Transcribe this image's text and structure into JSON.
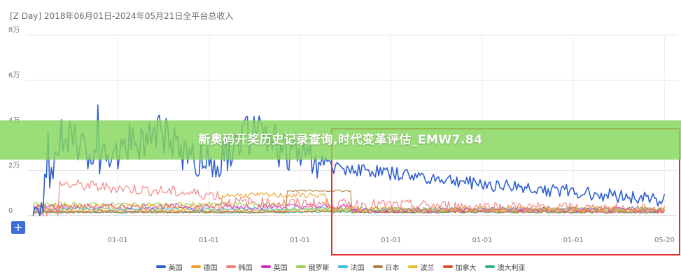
{
  "header": {
    "title": "[Z Day]  2018年06月01日-2024年05月21日全平台总收入"
  },
  "banner": {
    "text": "新奥码开奖历史记录查询,时代变革评估_EMW7.84"
  },
  "controls": {
    "expand_icon": "plus-icon",
    "expand_label": "+"
  },
  "highlight": {
    "color": "#e0322c"
  },
  "chart_data": {
    "type": "line",
    "title": "[Z Day]  2018年06月01日-2024年05月21日全平台总收入",
    "xlabel": "",
    "ylabel": "",
    "ylim": [
      0,
      80000
    ],
    "y_ticks": [
      0,
      20000,
      40000,
      60000,
      80000
    ],
    "y_tick_labels": [
      "0",
      "2万",
      "4万",
      "6万",
      "8万"
    ],
    "x_ticks": [
      0.0,
      0.14,
      0.28,
      0.42,
      0.56,
      0.7,
      0.84,
      0.98
    ],
    "x_tick_labels": [
      "",
      "01-01",
      "01-01",
      "01-01",
      "01-01",
      "01-01",
      "01-01",
      "05-20"
    ],
    "grid": true,
    "legend_position": "bottom",
    "series": [
      {
        "name": "美国",
        "color": "#2f5fd0"
      },
      {
        "name": "德国",
        "color": "#f0a030"
      },
      {
        "name": "韩国",
        "color": "#f08080"
      },
      {
        "name": "英国",
        "color": "#d030c0"
      },
      {
        "name": "俄罗斯",
        "color": "#a0d050"
      },
      {
        "name": "法国",
        "color": "#40c0e0"
      },
      {
        "name": "日本",
        "color": "#b08040"
      },
      {
        "name": "波兰",
        "color": "#e8c030"
      },
      {
        "name": "加拿大",
        "color": "#e05030"
      },
      {
        "name": "澳大利亚",
        "color": "#30b090"
      }
    ]
  }
}
